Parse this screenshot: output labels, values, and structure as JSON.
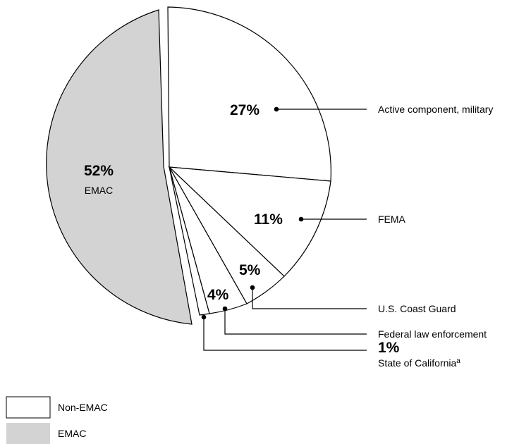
{
  "chart_data": {
    "type": "pie",
    "slices": [
      {
        "pct_label": "52%",
        "label": "EMAC",
        "value": 52,
        "group": "EMAC"
      },
      {
        "pct_label": "27%",
        "label": "Active component, military",
        "value": 27,
        "group": "Non-EMAC"
      },
      {
        "pct_label": "11%",
        "label": "FEMA",
        "value": 11,
        "group": "Non-EMAC"
      },
      {
        "pct_label": "5%",
        "label": "U.S. Coast Guard",
        "value": 5,
        "group": "Non-EMAC"
      },
      {
        "pct_label": "4%",
        "label": "Federal law enforcement",
        "value": 4,
        "group": "Non-EMAC"
      },
      {
        "pct_label": "1%",
        "label": "State of California",
        "label_sup": "a",
        "value": 1,
        "group": "Non-EMAC"
      }
    ],
    "legend": [
      {
        "label": "Non-EMAC",
        "color": "#ffffff"
      },
      {
        "label": "EMAC",
        "color": "#d3d3d3"
      }
    ],
    "legend_position": "bottom-left",
    "colors": {
      "emac": "#d3d3d3",
      "non_emac": "#ffffff",
      "stroke": "#000000"
    }
  }
}
